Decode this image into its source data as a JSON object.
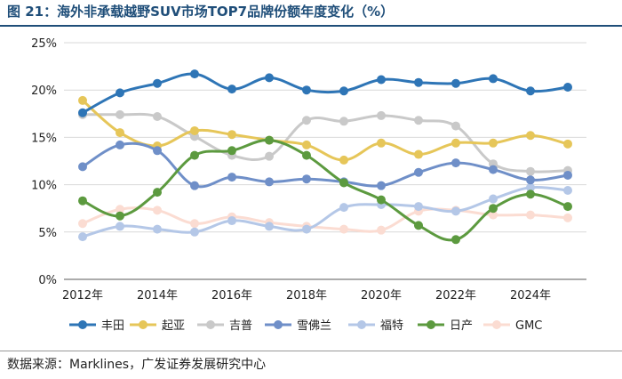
{
  "figure": {
    "title": "图 21：海外非承载越野SUV市场TOP7品牌份额年度变化（%）",
    "source": "数据来源：Marklines，广发证券发展研究中心"
  },
  "chart_data": {
    "type": "line",
    "x": [
      2012,
      2013,
      2014,
      2015,
      2016,
      2017,
      2018,
      2019,
      2020,
      2021,
      2022,
      2023,
      2024,
      2025
    ],
    "x_tick_labels": [
      "2012年",
      "2014年",
      "2016年",
      "2018年",
      "2020年",
      "2022年",
      "2024年"
    ],
    "x_tick_values": [
      2012,
      2014,
      2016,
      2018,
      2020,
      2022,
      2024
    ],
    "y_tick_labels": [
      "0%",
      "5%",
      "10%",
      "15%",
      "20%",
      "25%"
    ],
    "y_tick_values": [
      0,
      5,
      10,
      15,
      20,
      25
    ],
    "ylim": [
      0,
      25
    ],
    "xlim": [
      2011.5,
      2025.5
    ],
    "grid": "horizontal",
    "legend_position": "bottom",
    "series": [
      {
        "name": "丰田",
        "color": "#2e75b6",
        "values": [
          17.6,
          19.7,
          20.7,
          21.7,
          20.1,
          21.3,
          20.0,
          19.9,
          21.1,
          20.8,
          20.7,
          21.2,
          19.9,
          20.3
        ]
      },
      {
        "name": "起亚",
        "color": "#e6c659",
        "values": [
          18.9,
          15.5,
          14.1,
          15.7,
          15.3,
          14.7,
          14.2,
          12.6,
          14.4,
          13.2,
          14.4,
          14.4,
          15.2,
          14.3
        ]
      },
      {
        "name": "吉普",
        "color": "#c9c9c9",
        "values": [
          17.4,
          17.4,
          17.2,
          15.1,
          13.1,
          13.0,
          16.8,
          16.7,
          17.3,
          16.8,
          16.2,
          12.2,
          11.4,
          11.5
        ]
      },
      {
        "name": "雪佛兰",
        "color": "#6f8fc8",
        "values": [
          11.9,
          14.2,
          13.6,
          9.9,
          10.8,
          10.3,
          10.6,
          10.3,
          9.9,
          11.3,
          12.3,
          11.6,
          10.5,
          11.0
        ]
      },
      {
        "name": "福特",
        "color": "#b4c7e7",
        "values": [
          4.5,
          5.6,
          5.3,
          5.0,
          6.2,
          5.6,
          5.3,
          7.6,
          7.9,
          7.7,
          7.2,
          8.5,
          9.7,
          9.4
        ]
      },
      {
        "name": "日产",
        "color": "#5c9a3f",
        "values": [
          8.3,
          6.7,
          9.2,
          13.1,
          13.6,
          14.7,
          13.1,
          10.2,
          8.4,
          5.7,
          4.2,
          7.5,
          9.0,
          7.7
        ]
      },
      {
        "name": "GMC",
        "color": "#fbdcd2",
        "values": [
          5.9,
          7.4,
          7.3,
          5.9,
          6.6,
          6.0,
          5.6,
          5.3,
          5.2,
          7.2,
          7.3,
          6.8,
          6.8,
          6.5
        ]
      }
    ]
  }
}
